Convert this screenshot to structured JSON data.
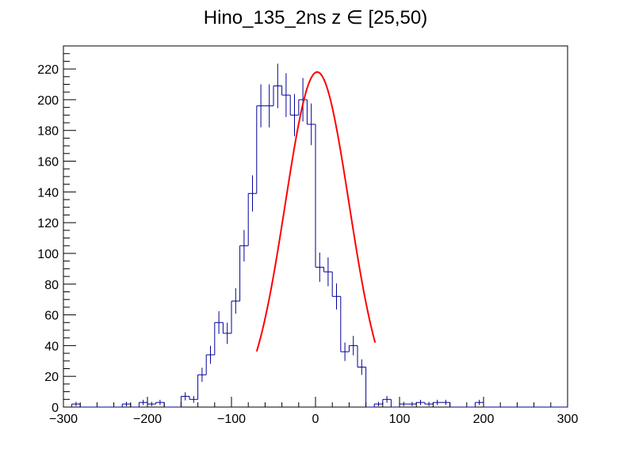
{
  "chart_data": {
    "type": "bar",
    "title": "Hino_135_2ns z  ∈ [25,50)",
    "xlabel": "",
    "ylabel": "",
    "xlim": [
      -300,
      300
    ],
    "ylim": [
      0,
      235
    ],
    "x_ticks": [
      -300,
      -200,
      -100,
      0,
      100,
      200,
      300
    ],
    "y_ticks": [
      0,
      20,
      40,
      60,
      80,
      100,
      120,
      140,
      160,
      180,
      200,
      220
    ],
    "bin_width": 10,
    "histogram": {
      "name": "",
      "color": "#000099",
      "bin_centers": [
        -295,
        -285,
        -275,
        -265,
        -255,
        -245,
        -235,
        -225,
        -215,
        -205,
        -195,
        -185,
        -175,
        -165,
        -155,
        -145,
        -135,
        -125,
        -115,
        -105,
        -95,
        -85,
        -75,
        -65,
        -55,
        -45,
        -35,
        -25,
        -15,
        -5,
        5,
        15,
        25,
        35,
        45,
        55,
        65,
        75,
        85,
        95,
        105,
        115,
        125,
        135,
        145,
        155,
        165,
        175,
        185,
        195,
        205,
        215,
        225,
        235,
        245,
        255,
        265,
        275,
        285,
        295
      ],
      "values": [
        0,
        2,
        0,
        0,
        0,
        0,
        0,
        2,
        0,
        3,
        2,
        3,
        0,
        0,
        7,
        5,
        21,
        34,
        55,
        48,
        69,
        105,
        139,
        196,
        196,
        209,
        203,
        190,
        200,
        184,
        91,
        88,
        72,
        36,
        40,
        26,
        0,
        2,
        5,
        0,
        2,
        2,
        3,
        2,
        3,
        3,
        0,
        0,
        0,
        3,
        0,
        0,
        0,
        0,
        0,
        0,
        0,
        0,
        0,
        0
      ]
    },
    "fit": {
      "name": "",
      "color": "#ff0000",
      "type": "gaussian",
      "amplitude": 218,
      "mean": 2,
      "sigma": 38,
      "x_range": [
        -70,
        71
      ]
    }
  }
}
